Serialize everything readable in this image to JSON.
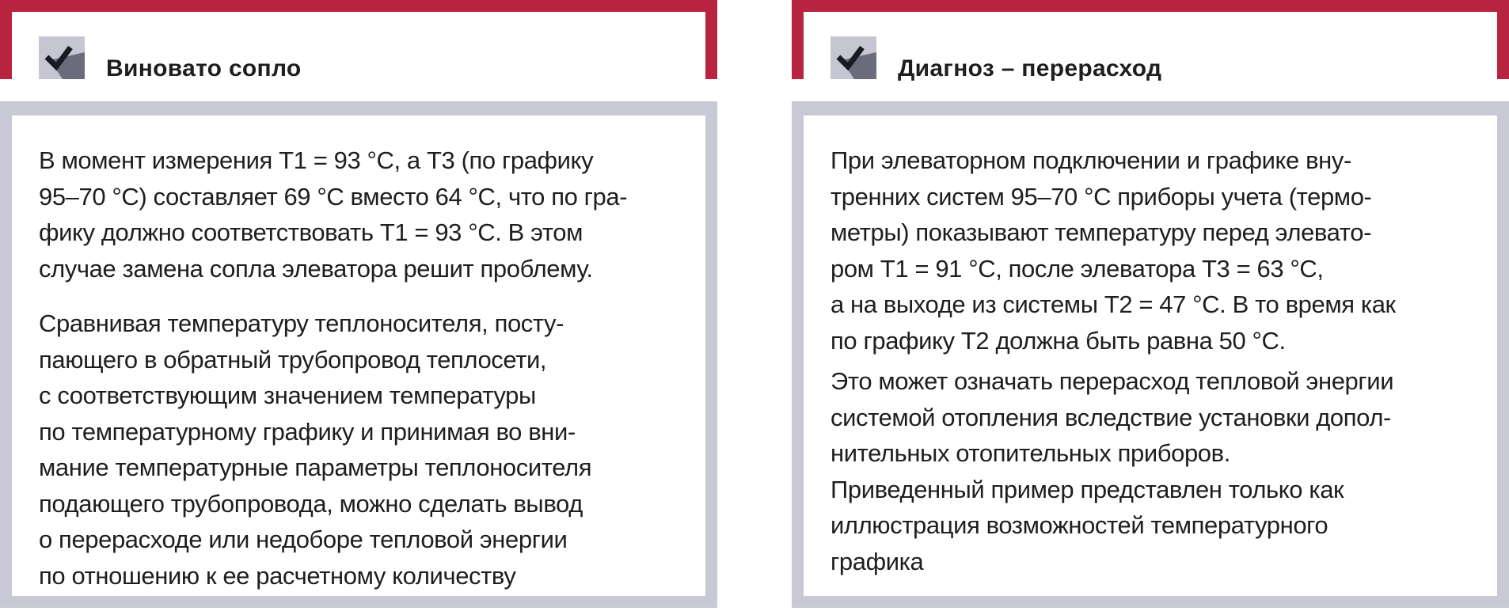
{
  "colors": {
    "frame_red": "#b82440",
    "frame_gray": "#c9c9d5",
    "text": "#1e1e1e"
  },
  "panels": [
    {
      "icon": "checkmark-icon",
      "title": "Виновато сопло",
      "paragraphs": [
        [
          "В момент измерения Т1 = 93 °С, а Т3 (по графику",
          "95–70 °С) составляет 69 °С вместо 64 °С, что по гра-",
          "фику должно соответствовать Т1 = 93 °С. В этом",
          "случае замена сопла элеватора решит проблему."
        ],
        [
          "Сравнивая температуру теплоносителя, посту-",
          "пающего в обратный трубопровод теплосети,",
          "с соответствующим значением температуры",
          "по температурному графику и принимая во вни-",
          "мание температурные параметры теплоносителя",
          "подающего трубопровода, можно сделать вывод",
          "о перерасходе или недоборе тепловой энергии",
          "по отношению к ее расчетному количеству"
        ]
      ]
    },
    {
      "icon": "checkmark-icon",
      "title": "Диагноз – перерасход",
      "paragraphs": [
        [
          "При элеваторном подключении и графике вну-",
          "тренних систем 95–70 °С приборы учета (термо-",
          "метры) показывают температуру перед элевато-",
          "ром Т1 = 91 °С, после элеватора Т3 = 63 °С,",
          "а на выходе из системы Т2 = 47 °С. В то время как",
          "по графику Т2 должна быть равна 50 °С."
        ],
        [
          "Это может означать перерасход тепловой энергии",
          "системой отопления вследствие установки допол-",
          "нительных отопительных приборов.",
          "Приведенный пример представлен только как",
          "иллюстрация возможностей температурного",
          "графика"
        ]
      ]
    }
  ]
}
